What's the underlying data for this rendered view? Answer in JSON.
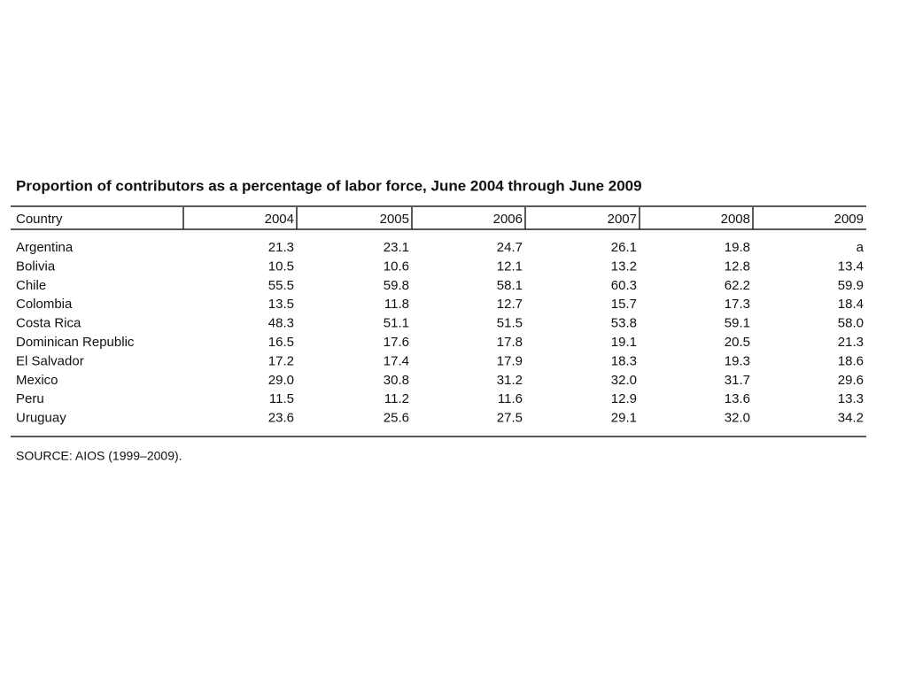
{
  "title": "Proportion of contributors as a percentage of labor force, June 2004 through June 2009",
  "table": {
    "header": [
      "Country",
      "2004",
      "2005",
      "2006",
      "2007",
      "2008",
      "2009"
    ],
    "rows": [
      [
        "Argentina",
        "21.3",
        "23.1",
        "24.7",
        "26.1",
        "19.8",
        "a"
      ],
      [
        "Bolivia",
        "10.5",
        "10.6",
        "12.1",
        "13.2",
        "12.8",
        "13.4"
      ],
      [
        "Chile",
        "55.5",
        "59.8",
        "58.1",
        "60.3",
        "62.2",
        "59.9"
      ],
      [
        "Colombia",
        "13.5",
        "11.8",
        "12.7",
        "15.7",
        "17.3",
        "18.4"
      ],
      [
        "Costa Rica",
        "48.3",
        "51.1",
        "51.5",
        "53.8",
        "59.1",
        "58.0"
      ],
      [
        "Dominican Republic",
        "16.5",
        "17.6",
        "17.8",
        "19.1",
        "20.5",
        "21.3"
      ],
      [
        "El Salvador",
        "17.2",
        "17.4",
        "17.9",
        "18.3",
        "19.3",
        "18.6"
      ],
      [
        "Mexico",
        "29.0",
        "30.8",
        "31.2",
        "32.0",
        "31.7",
        "29.6"
      ],
      [
        "Peru",
        "11.5",
        "11.2",
        "11.6",
        "12.9",
        "13.6",
        "13.3"
      ],
      [
        "Uruguay",
        "23.6",
        "25.6",
        "27.5",
        "29.1",
        "32.0",
        "34.2"
      ]
    ]
  },
  "source": "SOURCE: AIOS (1999–2009)."
}
